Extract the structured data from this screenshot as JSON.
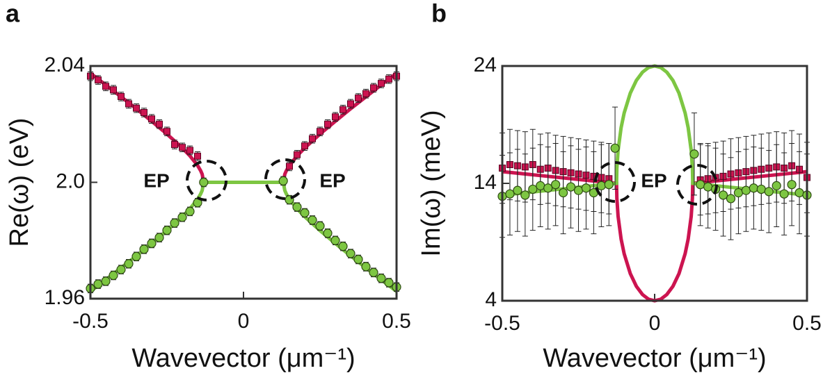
{
  "chart_data": [
    {
      "type": "line",
      "panel_label": "a",
      "xlabel": "Wavevector (μm⁻¹)",
      "ylabel": "Re(ω) (eV)",
      "xlim": [
        -0.5,
        0.5
      ],
      "xticks": [
        -0.5,
        0,
        0.5
      ],
      "ylim": [
        1.96,
        2.04
      ],
      "yticks": [
        1.96,
        {
          "value": 2,
          "label": "2.0"
        },
        2.04
      ],
      "annotations": [
        "EP",
        "EP"
      ],
      "series": [
        {
          "color": "#cc1450",
          "x": [
            -0.5,
            -0.45,
            -0.4,
            -0.35,
            -0.3,
            -0.25,
            -0.2,
            -0.175,
            -0.15,
            -0.14,
            -0.135,
            -0.13,
            0,
            0.13,
            0.135,
            0.14,
            0.15,
            0.175,
            0.2,
            0.25,
            0.3,
            0.35,
            0.4,
            0.45,
            0.5
          ],
          "values": [
            2.0375,
            2.0335,
            2.0294,
            2.0253,
            2.021,
            2.0166,
            2.0118,
            2.0091,
            2.0058,
            2.004,
            2.0028,
            2.0,
            null,
            2.0,
            2.0028,
            2.004,
            2.0058,
            2.0091,
            2.0118,
            2.0166,
            2.021,
            2.0253,
            2.0294,
            2.0335,
            2.0375
          ]
        },
        {
          "color": "#7dc642",
          "x": [
            -0.5,
            -0.45,
            -0.4,
            -0.35,
            -0.3,
            -0.25,
            -0.2,
            -0.175,
            -0.15,
            -0.14,
            -0.135,
            -0.13,
            0.13,
            0.135,
            0.14,
            0.15,
            0.175,
            0.2,
            0.25,
            0.3,
            0.35,
            0.4,
            0.45,
            0.5
          ],
          "values": [
            1.9625,
            1.9665,
            1.9706,
            1.9747,
            1.979,
            1.9834,
            1.9882,
            1.9909,
            1.9942,
            1.996,
            1.9972,
            2.0,
            2.0,
            1.9972,
            1.996,
            1.9942,
            1.9909,
            1.9882,
            1.9834,
            1.979,
            1.9747,
            1.9706,
            1.9665,
            1.9625
          ]
        },
        {
          "color": "#cc1450",
          "marker": "square",
          "error": 0.0015,
          "x": [
            -0.5,
            -0.475,
            -0.45,
            -0.425,
            -0.4,
            -0.375,
            -0.35,
            -0.325,
            -0.3,
            -0.275,
            -0.25,
            -0.225,
            -0.2,
            -0.175,
            -0.15,
            0.15,
            0.175,
            0.2,
            0.225,
            0.25,
            0.275,
            0.3,
            0.325,
            0.35,
            0.375,
            0.4,
            0.425,
            0.45,
            0.475,
            0.5
          ],
          "values": [
            2.0365,
            2.0352,
            2.033,
            2.0318,
            2.0295,
            2.027,
            2.0255,
            2.024,
            2.0218,
            2.02,
            2.0175,
            2.013,
            2.012,
            2.011,
            2.009,
            2.0055,
            2.0095,
            2.0125,
            2.015,
            2.0175,
            2.02,
            2.0225,
            2.025,
            2.027,
            2.029,
            2.0305,
            2.0325,
            2.034,
            2.0355,
            2.0365
          ]
        },
        {
          "color": "#7dc642",
          "marker": "circle",
          "error": 0.0015,
          "x": [
            -0.5,
            -0.475,
            -0.45,
            -0.425,
            -0.4,
            -0.375,
            -0.35,
            -0.325,
            -0.3,
            -0.275,
            -0.25,
            -0.225,
            -0.2,
            -0.175,
            -0.15,
            -0.13,
            0.13,
            0.15,
            0.175,
            0.2,
            0.225,
            0.25,
            0.275,
            0.3,
            0.325,
            0.35,
            0.375,
            0.4,
            0.425,
            0.45,
            0.475,
            0.5
          ],
          "values": [
            1.9635,
            1.965,
            1.966,
            1.968,
            1.97,
            1.972,
            1.9745,
            1.977,
            1.979,
            1.981,
            1.9835,
            1.986,
            1.988,
            1.99,
            1.993,
            2.0,
            2.0005,
            1.994,
            1.9915,
            1.9895,
            1.987,
            1.985,
            1.9825,
            1.98,
            1.978,
            1.9755,
            1.9735,
            1.971,
            1.969,
            1.967,
            1.9655,
            1.964
          ]
        }
      ]
    },
    {
      "type": "line",
      "panel_label": "b",
      "xlabel": "Wavevector (μm⁻¹)",
      "ylabel": "Im(ω) (meV)",
      "xlim": [
        -0.5,
        0.5
      ],
      "xticks": [
        -0.5,
        0,
        0.5
      ],
      "ylim": [
        4,
        24
      ],
      "yticks": [
        4,
        14,
        24
      ],
      "annotations": [
        "EP"
      ],
      "series": [
        {
          "color": "#cc1450",
          "x": [
            -0.5,
            -0.125,
            -0.124,
            -0.12,
            -0.11,
            -0.1,
            -0.08,
            -0.06,
            -0.04,
            -0.02,
            0,
            0.02,
            0.04,
            0.06,
            0.08,
            0.1,
            0.11,
            0.12,
            0.124,
            0.125,
            0.5
          ],
          "values": [
            15,
            14,
            12.74,
            11.2,
            9.25,
            8,
            6.32,
            5.23,
            4.53,
            4.13,
            4,
            4.13,
            4.53,
            5.23,
            6.32,
            8,
            9.25,
            11.2,
            12.74,
            14,
            15
          ]
        },
        {
          "color": "#7dc642",
          "x": [
            -0.5,
            -0.125,
            -0.124,
            -0.12,
            -0.11,
            -0.1,
            -0.08,
            -0.06,
            -0.04,
            -0.02,
            0,
            0.02,
            0.04,
            0.06,
            0.08,
            0.1,
            0.11,
            0.12,
            0.124,
            0.125,
            0.5
          ],
          "values": [
            13,
            14,
            15.26,
            16.8,
            18.75,
            20,
            21.68,
            22.77,
            23.47,
            23.87,
            24,
            23.87,
            23.47,
            22.77,
            21.68,
            20,
            18.75,
            16.8,
            15.26,
            14,
            13
          ]
        },
        {
          "color": "#cc1450",
          "marker": "square",
          "error": 3,
          "x": [
            -0.5,
            -0.475,
            -0.45,
            -0.425,
            -0.4,
            -0.375,
            -0.35,
            -0.325,
            -0.3,
            -0.275,
            -0.25,
            -0.225,
            -0.2,
            -0.175,
            -0.15,
            0.15,
            0.175,
            0.2,
            0.225,
            0.25,
            0.275,
            0.3,
            0.325,
            0.35,
            0.375,
            0.4,
            0.425,
            0.45,
            0.475,
            0.5
          ],
          "values": [
            15.3,
            15.6,
            15.5,
            15.4,
            15.6,
            15.2,
            15.3,
            15.1,
            15.0,
            14.9,
            14.8,
            14.7,
            14.6,
            14.5,
            14.4,
            14.3,
            14.4,
            14.5,
            14.6,
            14.8,
            14.9,
            15.0,
            15.1,
            15.2,
            15.3,
            15.4,
            15.3,
            15.5,
            15.2,
            14.5
          ]
        },
        {
          "color": "#7dc642",
          "marker": "circle",
          "error": 3.5,
          "x": [
            -0.5,
            -0.475,
            -0.45,
            -0.425,
            -0.4,
            -0.375,
            -0.35,
            -0.325,
            -0.3,
            -0.275,
            -0.25,
            -0.225,
            -0.2,
            -0.175,
            -0.15,
            -0.13,
            0.13,
            0.15,
            0.175,
            0.2,
            0.225,
            0.25,
            0.275,
            0.3,
            0.325,
            0.35,
            0.375,
            0.4,
            0.425,
            0.45,
            0.475,
            0.5
          ],
          "values": [
            12.9,
            13.1,
            13.4,
            13.0,
            13.5,
            13.8,
            13.6,
            13.9,
            13.2,
            13.7,
            13.4,
            13.6,
            13.2,
            13.8,
            13.9,
            17.0,
            16.5,
            13.9,
            13.7,
            13.5,
            13.0,
            12.7,
            13.2,
            13.4,
            13.6,
            13.5,
            13.3,
            13.8,
            13.1,
            13.9,
            13.2,
            13.0
          ]
        }
      ]
    }
  ]
}
